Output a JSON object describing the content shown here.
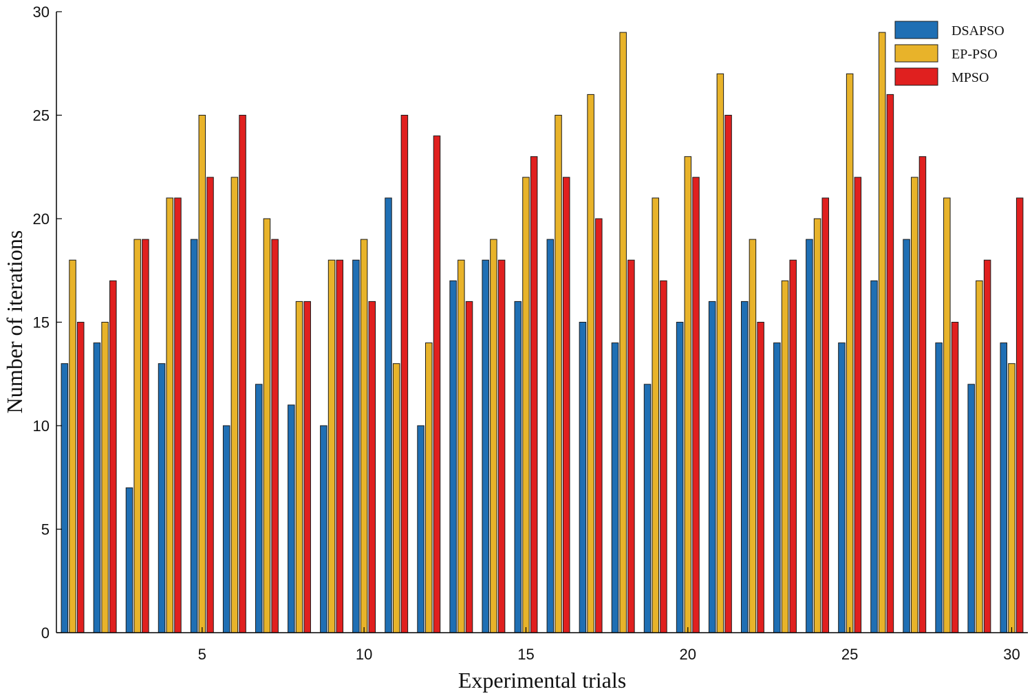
{
  "chart_data": {
    "type": "bar",
    "title": "",
    "xlabel": "Experimental trials",
    "ylabel": "Number of iterations",
    "ylim": [
      0,
      30
    ],
    "xlim": [
      0.5,
      30.5
    ],
    "yticks": [
      0,
      5,
      10,
      15,
      20,
      25,
      30
    ],
    "xticks": [
      5,
      10,
      15,
      20,
      25,
      30
    ],
    "categories": [
      1,
      2,
      3,
      4,
      5,
      6,
      7,
      8,
      9,
      10,
      11,
      12,
      13,
      14,
      15,
      16,
      17,
      18,
      19,
      20,
      21,
      22,
      23,
      24,
      25,
      26,
      27,
      28,
      29,
      30
    ],
    "legend_position": "top-right",
    "grid": false,
    "series": [
      {
        "name": "DSAPSO",
        "color": "#1f6fb4",
        "values": [
          13,
          14,
          7,
          13,
          19,
          10,
          12,
          11,
          10,
          18,
          21,
          10,
          17,
          18,
          16,
          19,
          15,
          14,
          12,
          15,
          16,
          16,
          14,
          19,
          14,
          17,
          19,
          14,
          12,
          14
        ]
      },
      {
        "name": "EP-PSO",
        "color": "#e8b32a",
        "values": [
          18,
          15,
          19,
          21,
          25,
          22,
          20,
          16,
          18,
          19,
          13,
          14,
          18,
          19,
          22,
          25,
          26,
          29,
          21,
          23,
          27,
          19,
          17,
          20,
          27,
          29,
          22,
          21,
          17,
          13
        ]
      },
      {
        "name": "MPSO",
        "color": "#e0201f",
        "values": [
          15,
          17,
          19,
          21,
          22,
          25,
          19,
          16,
          18,
          16,
          25,
          24,
          16,
          18,
          23,
          22,
          20,
          18,
          17,
          22,
          25,
          15,
          18,
          21,
          22,
          26,
          23,
          15,
          18,
          21
        ]
      }
    ]
  }
}
